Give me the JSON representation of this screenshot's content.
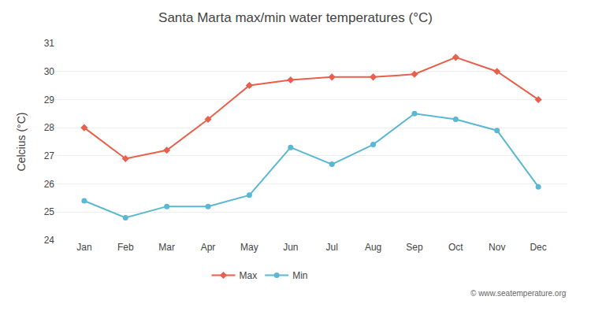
{
  "chart_data": {
    "type": "line",
    "title": "Santa Marta max/min water temperatures (°C)",
    "ylabel": "Celcius (°C)",
    "categories": [
      "Jan",
      "Feb",
      "Mar",
      "Apr",
      "May",
      "Jun",
      "Jul",
      "Aug",
      "Sep",
      "Oct",
      "Nov",
      "Dec"
    ],
    "series": [
      {
        "name": "Max",
        "color": "#e8604c",
        "marker": "diamond",
        "values": [
          28.0,
          26.9,
          27.2,
          28.3,
          29.5,
          29.7,
          29.8,
          29.8,
          29.9,
          30.5,
          30.0,
          29.0
        ]
      },
      {
        "name": "Min",
        "color": "#5ab8d4",
        "marker": "circle",
        "values": [
          25.4,
          24.8,
          25.2,
          25.2,
          25.6,
          27.3,
          26.7,
          27.4,
          28.5,
          28.3,
          27.9,
          25.9
        ]
      }
    ],
    "ylim": [
      24,
      31
    ],
    "yticks": [
      24,
      25,
      26,
      27,
      28,
      29,
      30,
      31
    ],
    "grid": true,
    "legend": "bottom",
    "annotations": [
      "© www.seatemperature.org"
    ]
  }
}
